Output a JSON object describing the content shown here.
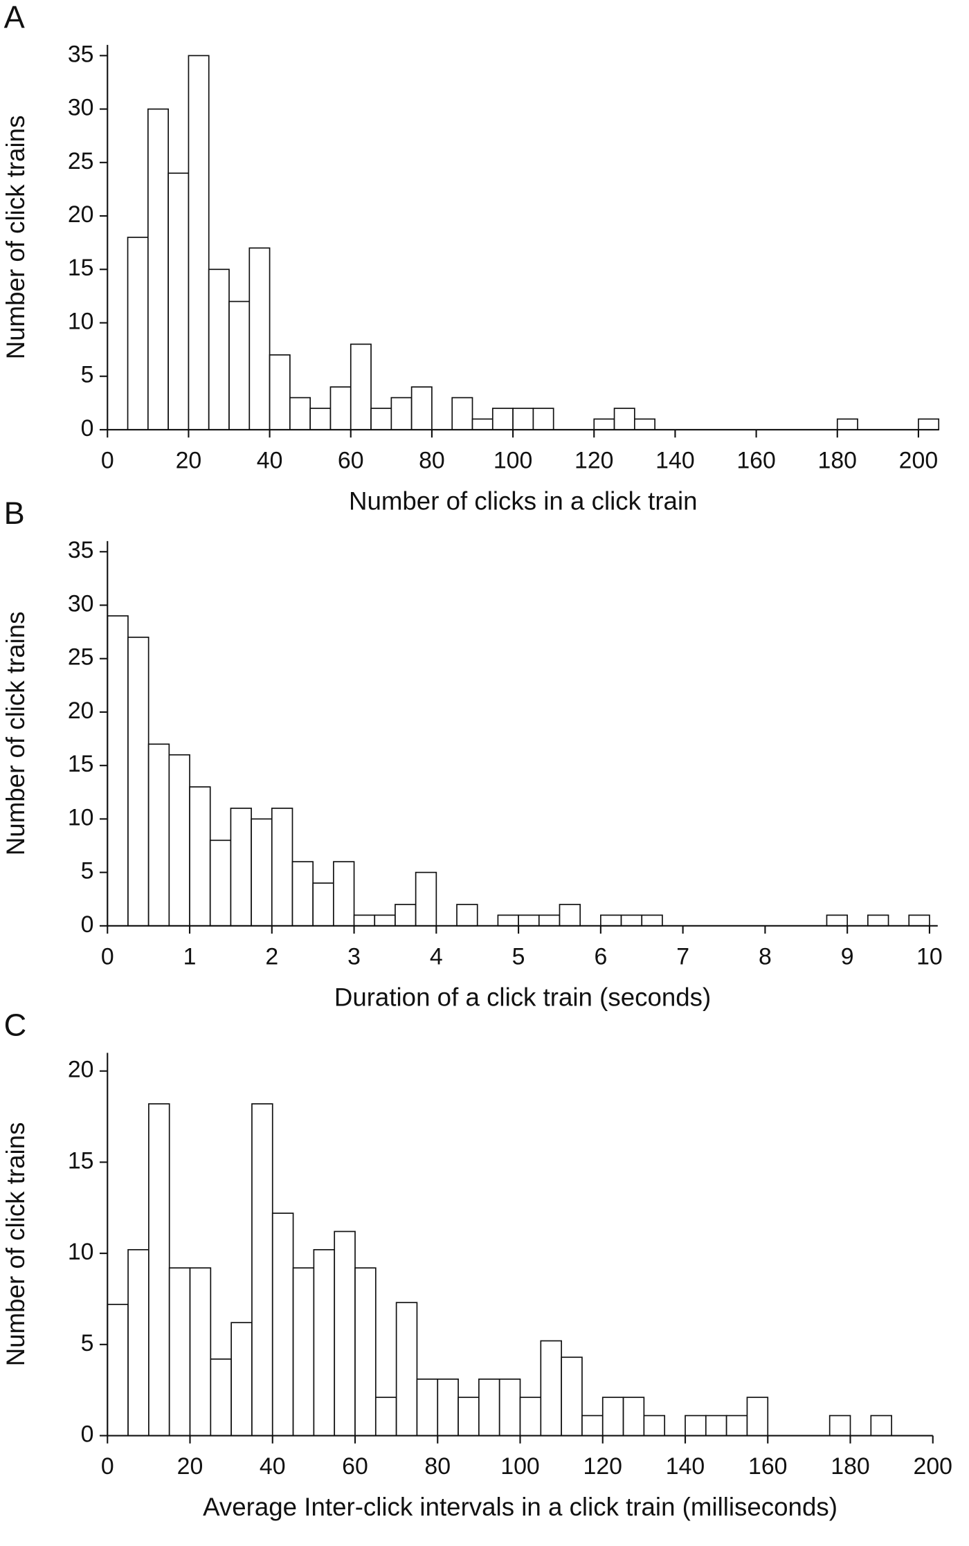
{
  "chart_data": [
    {
      "type": "histogram",
      "panel_label": "A",
      "xlabel": "Number of clicks in a click train",
      "ylabel": "Number of click trains",
      "bins": [
        0,
        5,
        10,
        15,
        20,
        25,
        30,
        35,
        40,
        45,
        50,
        55,
        60,
        65,
        70,
        75,
        80,
        85,
        90,
        95,
        100,
        105,
        110,
        115,
        120,
        125,
        130,
        135,
        140,
        145,
        150,
        155,
        160,
        165,
        170,
        175,
        180,
        185,
        190,
        195,
        200,
        205
      ],
      "values": [
        0,
        18,
        30,
        24,
        35,
        15,
        12,
        17,
        7,
        3,
        2,
        4,
        8,
        2,
        3,
        4,
        0,
        3,
        1,
        2,
        2,
        2,
        0,
        0,
        1,
        2,
        1,
        0,
        0,
        0,
        0,
        0,
        0,
        0,
        0,
        0,
        1,
        0,
        0,
        0,
        1
      ],
      "xlim": [
        0,
        205
      ],
      "xticks": [
        0,
        20,
        40,
        60,
        80,
        100,
        120,
        140,
        160,
        180,
        200
      ],
      "ylim": [
        0,
        36
      ],
      "yticks": [
        0,
        5,
        10,
        15,
        20,
        25,
        30,
        35
      ],
      "color": "#ffffff"
    },
    {
      "type": "histogram",
      "panel_label": "B",
      "xlabel": "Duration of a click train (seconds)",
      "ylabel": "Number of click trains",
      "bins": [
        0,
        0.25,
        0.5,
        0.75,
        1,
        1.25,
        1.5,
        1.75,
        2,
        2.25,
        2.5,
        2.75,
        3,
        3.25,
        3.5,
        3.75,
        4,
        4.25,
        4.5,
        4.75,
        5,
        5.25,
        5.5,
        5.75,
        6,
        6.25,
        6.5,
        6.75,
        7,
        7.25,
        7.5,
        7.75,
        8,
        8.25,
        8.5,
        8.75,
        9,
        9.25,
        9.5,
        9.75,
        10
      ],
      "values": [
        29,
        27,
        17,
        16,
        13,
        8,
        11,
        10,
        11,
        6,
        4,
        6,
        1,
        1,
        2,
        5,
        0,
        2,
        0,
        1,
        1,
        1,
        2,
        0,
        1,
        1,
        1,
        0,
        0,
        0,
        0,
        0,
        0,
        0,
        0,
        1,
        0,
        1,
        0,
        1
      ],
      "xlim": [
        0,
        10.1
      ],
      "xticks": [
        0,
        1,
        2,
        3,
        4,
        5,
        6,
        7,
        8,
        9,
        10
      ],
      "ylim": [
        0,
        36
      ],
      "yticks": [
        0,
        5,
        10,
        15,
        20,
        25,
        30,
        35
      ],
      "color": "#ffffff"
    },
    {
      "type": "histogram",
      "panel_label": "C",
      "xlabel": "Average Inter-click intervals in a click train (milliseconds)",
      "ylabel": "Number of click trains",
      "bins": [
        0,
        5,
        10,
        15,
        20,
        25,
        30,
        35,
        40,
        45,
        50,
        55,
        60,
        65,
        70,
        75,
        80,
        85,
        90,
        95,
        100,
        105,
        110,
        115,
        120,
        125,
        130,
        135,
        140,
        145,
        150,
        155,
        160,
        165,
        170,
        175,
        180,
        185,
        190,
        195,
        200
      ],
      "values": [
        7.2,
        10.2,
        18.2,
        9.2,
        9.2,
        4.2,
        6.2,
        18.2,
        12.2,
        9.2,
        10.2,
        11.2,
        9.2,
        2.1,
        7.3,
        3.1,
        3.1,
        2.1,
        3.1,
        3.1,
        2.1,
        5.2,
        4.3,
        1.1,
        2.1,
        2.1,
        1.1,
        0,
        1.1,
        1.1,
        1.1,
        2.1,
        0,
        0,
        0,
        1.1,
        0,
        1.1,
        0,
        0
      ],
      "xlim": [
        0,
        200
      ],
      "xticks": [
        0,
        20,
        40,
        60,
        80,
        100,
        120,
        140,
        160,
        180,
        200
      ],
      "ylim": [
        0,
        21
      ],
      "yticks": [
        0,
        5,
        10,
        15,
        20
      ],
      "color": "#ffffff"
    }
  ]
}
